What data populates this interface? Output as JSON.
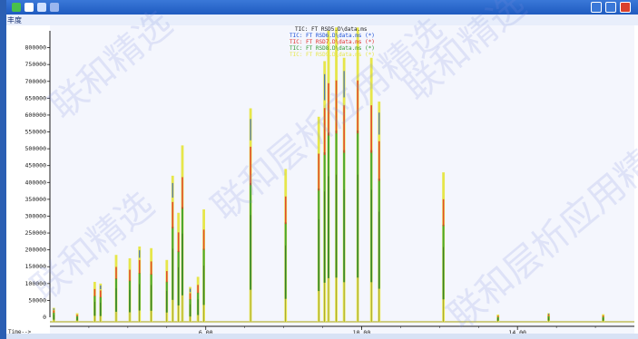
{
  "window": {
    "title_bar_color": "#1f5bc0"
  },
  "toolbar": {
    "abundance_label": "丰度"
  },
  "legend": {
    "entries": [
      {
        "text": "TIC: FT RSD5.D\\data.ms",
        "color": "#1b1b1b"
      },
      {
        "text": "TIC: FT RSD6.D\\data.ms (*)",
        "color": "#1a4fd6"
      },
      {
        "text": "TIC: FT RSD7.D\\data.ms (*)",
        "color": "#e0302a"
      },
      {
        "text": "TIC: FT RSD8.D\\data.ms (*)",
        "color": "#2e9a2e"
      },
      {
        "text": "TIC: FT RSD9.D\\data.ms (*)",
        "color": "#e6e64a"
      }
    ]
  },
  "chart_data": {
    "type": "line",
    "ylim": [
      0,
      850000
    ],
    "xlim": [
      2.0,
      17.0
    ],
    "yticks": [
      "50000",
      "100000",
      "150000",
      "200000",
      "250000",
      "300000",
      "350000",
      "400000",
      "450000",
      "500000",
      "550000",
      "600000",
      "650000",
      "700000",
      "750000",
      "800000"
    ],
    "ytick_values": [
      50000,
      100000,
      150000,
      200000,
      250000,
      300000,
      350000,
      400000,
      450000,
      500000,
      550000,
      600000,
      650000,
      700000,
      750000,
      800000
    ],
    "ytick_zero": "0",
    "xticks": [
      "6.00",
      "10.00",
      "14.00"
    ],
    "xtick_values": [
      6.0,
      10.0,
      14.0
    ],
    "xaxis_corner_label": "Time-->",
    "series_colors": [
      "#1b1b1b",
      "#1a4fd6",
      "#e0302a",
      "#2e9a2e",
      "#e6e64a"
    ],
    "peaks": [
      {
        "x": 2.1,
        "y": 28000
      },
      {
        "x": 2.7,
        "y": 12000
      },
      {
        "x": 3.15,
        "y": 105000
      },
      {
        "x": 3.3,
        "y": 100000
      },
      {
        "x": 3.7,
        "y": 185000
      },
      {
        "x": 4.05,
        "y": 175000
      },
      {
        "x": 4.3,
        "y": 210000
      },
      {
        "x": 4.6,
        "y": 205000
      },
      {
        "x": 5.0,
        "y": 170000
      },
      {
        "x": 5.15,
        "y": 420000
      },
      {
        "x": 5.3,
        "y": 310000
      },
      {
        "x": 5.4,
        "y": 510000
      },
      {
        "x": 5.6,
        "y": 90000
      },
      {
        "x": 5.8,
        "y": 120000
      },
      {
        "x": 5.95,
        "y": 320000
      },
      {
        "x": 7.15,
        "y": 620000
      },
      {
        "x": 8.05,
        "y": 440000
      },
      {
        "x": 8.9,
        "y": 595000
      },
      {
        "x": 9.05,
        "y": 760000
      },
      {
        "x": 9.15,
        "y": 850000
      },
      {
        "x": 9.35,
        "y": 860000
      },
      {
        "x": 9.55,
        "y": 770000
      },
      {
        "x": 9.9,
        "y": 860000
      },
      {
        "x": 10.25,
        "y": 770000
      },
      {
        "x": 10.45,
        "y": 640000
      },
      {
        "x": 12.1,
        "y": 430000
      },
      {
        "x": 13.5,
        "y": 8000
      },
      {
        "x": 14.8,
        "y": 12000
      },
      {
        "x": 16.2,
        "y": 9000
      }
    ]
  },
  "watermark": {
    "text_a": "联和层析应用精选",
    "text_b": "联和精选"
  }
}
